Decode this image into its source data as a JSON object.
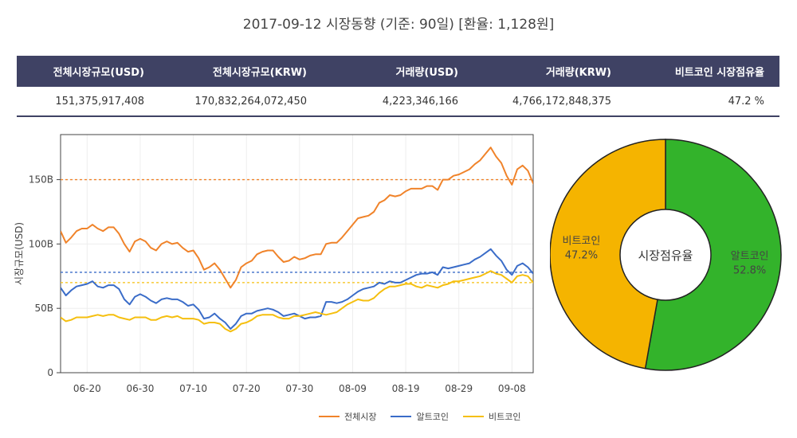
{
  "header": {
    "title": "2017-09-12 시장동향 (기준: 90일)   [환율: 1,128원]"
  },
  "table": {
    "headers": [
      "전체시장규모(USD)",
      "전체시장규모(KRW)",
      "거래량(USD)",
      "거래량(KRW)",
      "비트코인 시장점유율"
    ],
    "values": [
      "151,375,917,408",
      "170,832,264,072,450",
      "4,223,346,166",
      "4,766,172,848,375",
      "47.2 %"
    ]
  },
  "colors": {
    "total": "#f0832a",
    "alt": "#3a6cc8",
    "btc": "#f5bf0f",
    "pie_btc": "#f5b400",
    "pie_alt": "#33b32b",
    "header_bg": "#3f4264"
  },
  "chart_data": [
    {
      "type": "line",
      "ylabel": "시장규모(USD)",
      "ylim": [
        0,
        185
      ],
      "yticks": [
        0,
        50,
        100,
        150
      ],
      "ytick_labels": [
        "0",
        "50B",
        "100B",
        "150B"
      ],
      "xlim": [
        "2017-06-15",
        "2017-09-12"
      ],
      "xticks": [
        "2017-06-20",
        "2017-06-30",
        "2017-07-10",
        "2017-07-20",
        "2017-07-30",
        "2017-08-09",
        "2017-08-19",
        "2017-08-29",
        "2017-09-08"
      ],
      "xtick_labels": [
        "06-20",
        "06-30",
        "07-10",
        "07-20",
        "07-30",
        "08-09",
        "08-19",
        "08-29",
        "09-08"
      ],
      "x_start": "2017-06-15",
      "series": [
        {
          "name": "전체시장",
          "color": "#f0832a",
          "average": 150,
          "values": [
            110,
            101,
            105,
            110,
            112,
            112,
            115,
            112,
            110,
            113,
            113,
            108,
            100,
            94,
            102,
            104,
            102,
            97,
            95,
            100,
            102,
            100,
            101,
            97,
            94,
            95,
            89,
            80,
            82,
            85,
            80,
            73,
            66,
            72,
            82,
            85,
            87,
            92,
            94,
            95,
            95,
            90,
            86,
            87,
            90,
            88,
            89,
            91,
            92,
            92,
            100,
            101,
            101,
            105,
            110,
            115,
            120,
            121,
            122,
            125,
            132,
            134,
            138,
            137,
            138,
            141,
            143,
            143,
            143,
            145,
            145,
            142,
            150,
            150,
            153,
            154,
            156,
            158,
            162,
            165,
            170,
            175,
            168,
            163,
            153,
            146,
            158,
            161,
            157,
            147,
            143,
            146
          ]
        },
        {
          "name": "알트코인",
          "color": "#3a6cc8",
          "average": 78,
          "values": [
            66,
            60,
            64,
            67,
            68,
            69,
            71,
            67,
            66,
            68,
            68,
            65,
            57,
            53,
            59,
            61,
            59,
            56,
            54,
            57,
            58,
            57,
            57,
            55,
            52,
            53,
            49,
            42,
            43,
            46,
            42,
            39,
            34,
            38,
            44,
            46,
            46,
            48,
            49,
            50,
            49,
            47,
            44,
            45,
            46,
            44,
            42,
            43,
            43,
            44,
            55,
            55,
            54,
            55,
            57,
            60,
            63,
            65,
            66,
            67,
            70,
            69,
            71,
            70,
            70,
            72,
            74,
            76,
            77,
            77,
            78,
            76,
            82,
            81,
            82,
            83,
            84,
            85,
            88,
            90,
            93,
            96,
            91,
            87,
            80,
            76,
            83,
            85,
            82,
            77,
            74,
            77
          ]
        },
        {
          "name": "비트코인",
          "color": "#f5bf0f",
          "average": 70,
          "values": [
            43,
            40,
            41,
            43,
            43,
            43,
            44,
            45,
            44,
            45,
            45,
            43,
            42,
            41,
            43,
            43,
            43,
            41,
            41,
            43,
            44,
            43,
            44,
            42,
            42,
            42,
            41,
            38,
            39,
            39,
            38,
            34,
            32,
            34,
            38,
            39,
            41,
            44,
            45,
            45,
            45,
            43,
            42,
            42,
            44,
            44,
            45,
            46,
            47,
            46,
            45,
            46,
            47,
            50,
            53,
            55,
            57,
            56,
            56,
            58,
            62,
            65,
            67,
            67,
            68,
            69,
            69,
            67,
            66,
            68,
            67,
            66,
            68,
            69,
            71,
            71,
            72,
            73,
            74,
            75,
            77,
            79,
            77,
            76,
            73,
            70,
            75,
            76,
            75,
            70,
            69,
            69
          ]
        }
      ],
      "legend": [
        "전체시장",
        "알트코인",
        "비트코인"
      ],
      "legend_position": "bottom"
    },
    {
      "type": "pie",
      "center_label": "시장점유율",
      "slices": [
        {
          "label": "알트코인",
          "value": 52.8,
          "display": "52.8%",
          "color": "#33b32b"
        },
        {
          "label": "비트코인",
          "value": 47.2,
          "display": "47.2%",
          "color": "#f5b400"
        }
      ]
    }
  ]
}
